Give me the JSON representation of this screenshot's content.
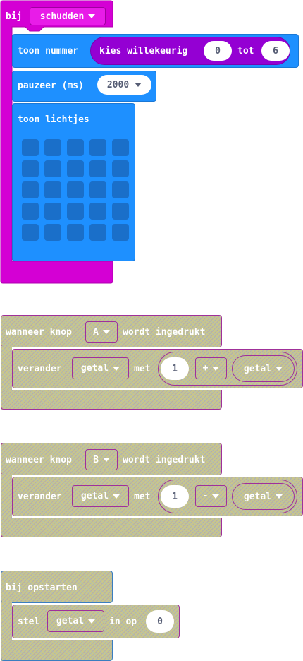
{
  "shake_event": {
    "label": "bij",
    "gesture": "schudden",
    "show_number": {
      "label": "toon nummer",
      "random": {
        "label": "kies willekeurig",
        "from": "0",
        "to_label": "tot",
        "to": "6"
      }
    },
    "pause": {
      "label": "pauzeer (ms)",
      "value": "2000"
    },
    "show_leds": {
      "label": "toon lichtjes"
    }
  },
  "button_a_event": {
    "label_pre": "wanneer knop",
    "button": "A",
    "label_post": "wordt ingedrukt",
    "change": {
      "label": "verander",
      "variable": "getal",
      "with_label": "met",
      "operand": "1",
      "operator": "+",
      "variable2": "getal"
    }
  },
  "button_b_event": {
    "label_pre": "wanneer knop",
    "button": "B",
    "label_post": "wordt ingedrukt",
    "change": {
      "label": "verander",
      "variable": "getal",
      "with_label": "met",
      "operand": "1",
      "operator": "-",
      "variable2": "getal"
    }
  },
  "on_start_event": {
    "label": "bij opstarten",
    "set": {
      "label": "stel",
      "variable": "getal",
      "to_label": "in op",
      "value": "0"
    }
  },
  "colors": {
    "input_magenta": "#d400d4",
    "basic_blue": "#1e90ff",
    "math_purple": "#9400d3",
    "disabled_fill": "#c9c68a"
  }
}
